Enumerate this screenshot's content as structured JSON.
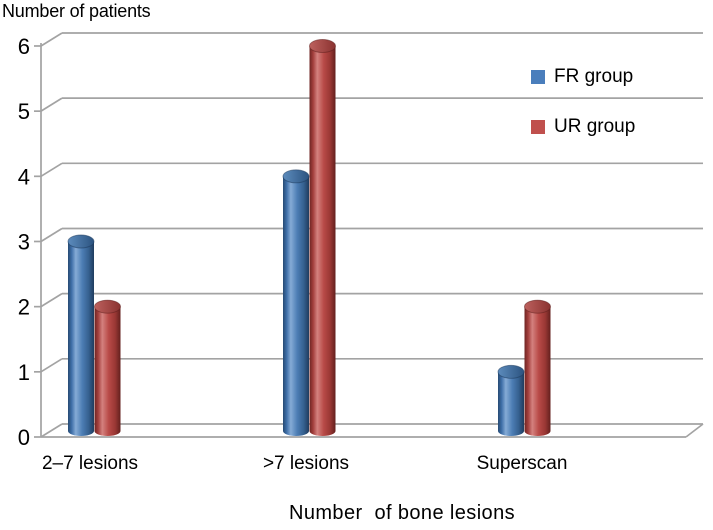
{
  "title": "Number of patients",
  "x_axis_title": "Number  of bone lesions",
  "legend": [
    {
      "label": "FR group",
      "color": "#4a7ebc"
    },
    {
      "label": "UR group",
      "color": "#c0504d"
    }
  ],
  "chart_data": {
    "type": "bar",
    "style": "3d-cylinder",
    "title": "Number of patients",
    "xlabel": "Number of bone lesions",
    "ylabel": "Number of patients",
    "categories": [
      "2–7 lesions",
      ">7 lesions",
      "Superscan"
    ],
    "series": [
      {
        "name": "FR group",
        "color": "#4a7ebc",
        "values": [
          3,
          4,
          1
        ]
      },
      {
        "name": "UR group",
        "color": "#c0504d",
        "values": [
          2,
          6,
          2
        ]
      }
    ],
    "yticks": [
      0,
      1,
      2,
      3,
      4,
      5,
      6
    ],
    "ylim": [
      0,
      6
    ],
    "grid": true,
    "legend_position": "upper-right"
  },
  "palette": {
    "grid": "#a3a3a3",
    "text": "#000000",
    "background": "#ffffff",
    "blue": {
      "body": [
        "#264a73",
        "#3f6fa8",
        "#85abd6",
        "#4c7db4",
        "#35608f",
        "#203c5e"
      ],
      "cap": [
        "#5d8cbd",
        "#2b5380"
      ],
      "rim": "#1d3a5c"
    },
    "red": {
      "body": [
        "#6e2523",
        "#a33f3c",
        "#d4817e",
        "#b84a47",
        "#993734",
        "#63201e"
      ],
      "cap": [
        "#bd615e",
        "#8a3230"
      ],
      "rim": "#5c1d1c"
    }
  }
}
